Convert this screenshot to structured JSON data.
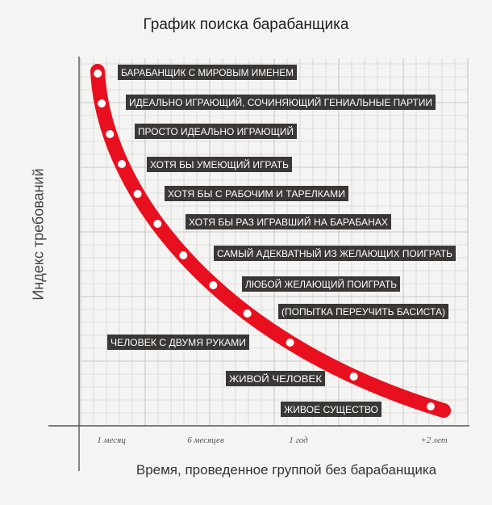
{
  "chart_data": {
    "type": "line",
    "title": "График поиска барабанщика",
    "xlabel": "Время, проведенное группой без барабанщика",
    "ylabel": "Индекс требований",
    "x_ticks": [
      "1 месяц",
      "6 месяцев",
      "1 год",
      "+2 лет"
    ],
    "grid": true,
    "legend": "none",
    "colors": {
      "curve": "#e8101f",
      "dot": "#ffffff",
      "label_bg": "#3a3735",
      "label_text": "#ffffff",
      "grid": "#c8c8c8",
      "axis": "#555555"
    },
    "levels": [
      "БАРАБАНЩИК С МИРОВЫМ ИМЕНЕМ",
      "ИДЕАЛЬНО ИГРАЮЩИЙ, СОЧИНЯЮЩИЙ ГЕНИАЛЬНЫЕ ПАРТИИ",
      "ПРОСТО ИДЕАЛЬНО ИГРАЮЩИЙ",
      "ХОТЯ БЫ УМЕЮЩИЙ ИГРАТЬ",
      "ХОТЯ БЫ С РАБОЧИМ И ТАРЕЛКАМИ",
      "ХОТЯ БЫ РАЗ ИГРАВШИЙ НА БАРАБАНАХ",
      "САМЫЙ АДЕКВАТНЫЙ ИЗ ЖЕЛАЮЩИХ ПОИГРАТЬ",
      "ЛЮБОЙ ЖЕЛАЮЩИЙ ПОИГРАТЬ",
      "(ПОПЫТКА ПЕРЕУЧИТЬ БАСИСТА)",
      "ЧЕЛОВЕК С ДВУМЯ РУКАМИ",
      "ЖИВОЙ ЧЕЛОВЕК",
      "ЖИВОЕ СУЩЕСТВО"
    ]
  }
}
